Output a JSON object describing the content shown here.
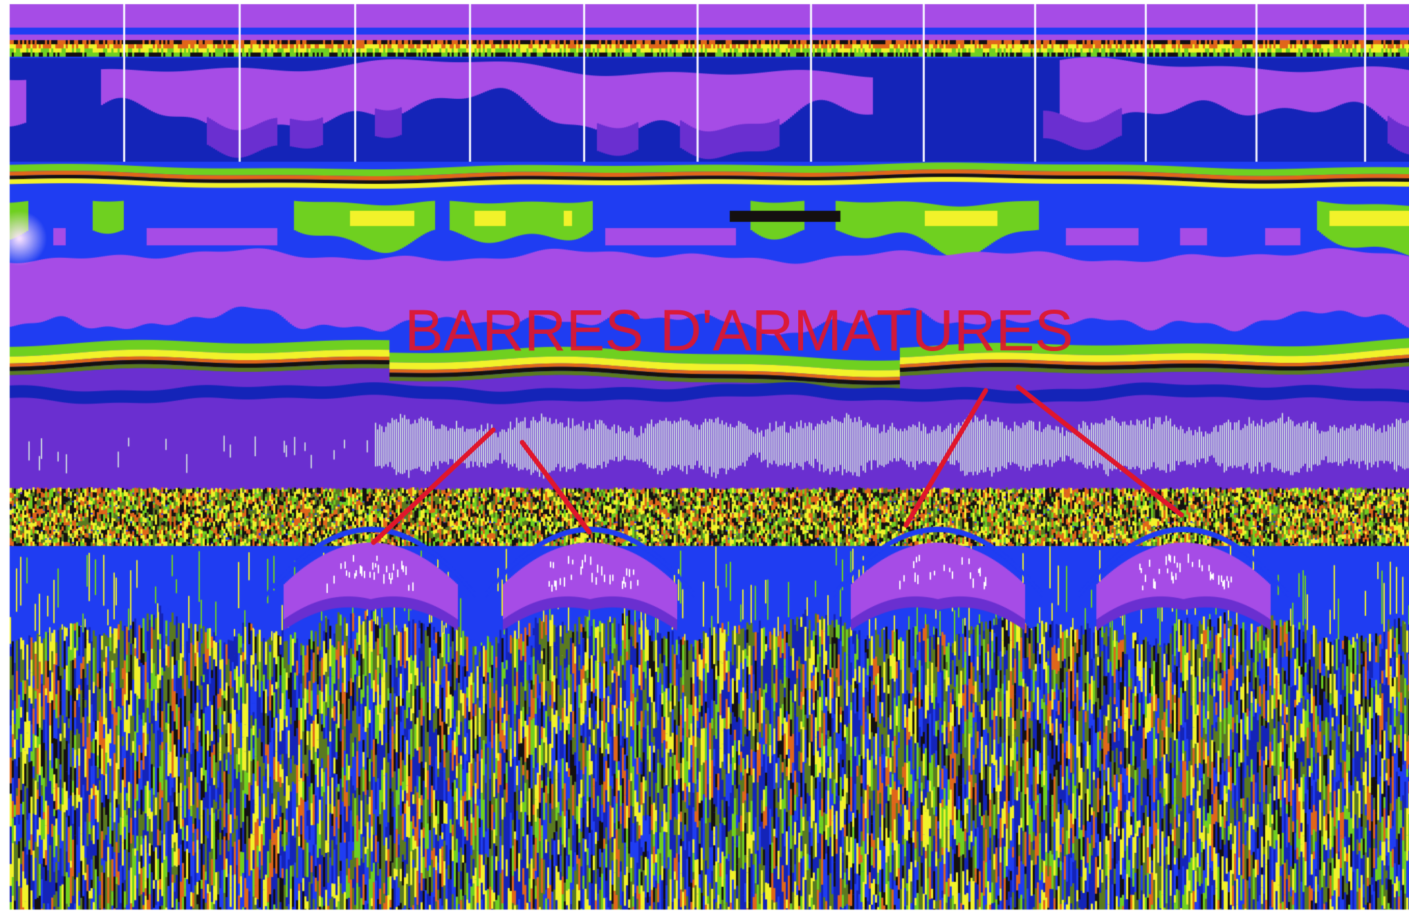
{
  "annotation": {
    "text": "BARRES D'ARMATURES",
    "color": "#e0162b"
  },
  "palette": {
    "magenta": "#a64ce6",
    "purple": "#6a2fd0",
    "blue": "#1f3df2",
    "dark_blue": "#1424b8",
    "green": "#6fd020",
    "yellow": "#f2f22a",
    "orange": "#e0661a",
    "black": "#141010",
    "light_gray": "#c9d2e0",
    "white": "#ffffff",
    "olive": "#5a7a20"
  },
  "rebars_detected": 4
}
